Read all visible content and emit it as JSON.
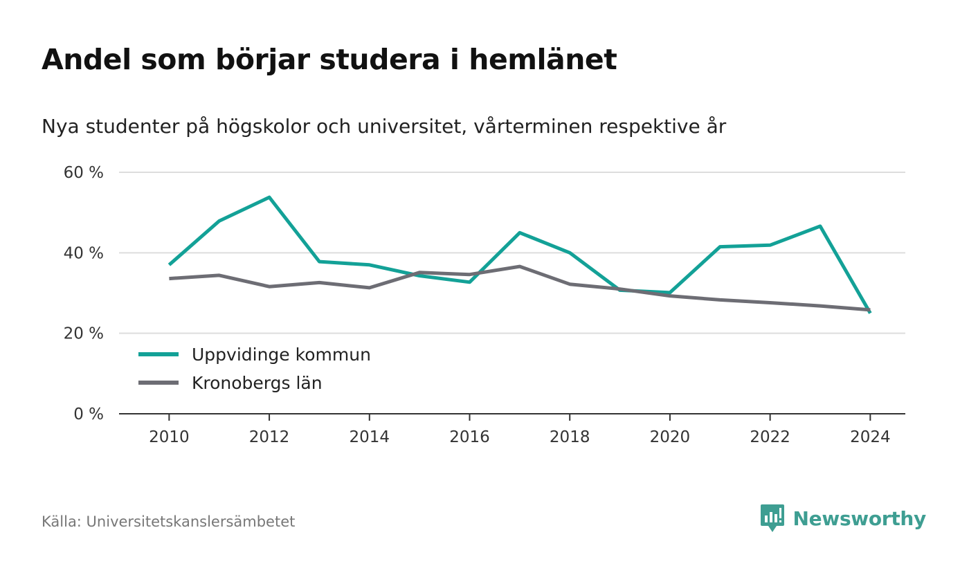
{
  "title": "Andel som börjar studera i hemlänet",
  "subtitle": "Nya studenter på högskolor och universitet, vårterminen respektive år",
  "source": "Källa: Universitetskanslersämbetet",
  "brand": {
    "name": "Newsworthy",
    "icon": "newsworthy-logo-icon",
    "color": "#3e9e92"
  },
  "colors": {
    "series_1": "#13a197",
    "series_2": "#6d6d74",
    "grid": "#dddddd",
    "axis": "#333333"
  },
  "chart_data": {
    "type": "line",
    "title": "Andel som börjar studera i hemlänet",
    "subtitle": "Nya studenter på högskolor och universitet, vårterminen respektive år",
    "xlabel": "",
    "ylabel": "",
    "x": [
      2010,
      2011,
      2012,
      2013,
      2014,
      2015,
      2016,
      2017,
      2018,
      2019,
      2020,
      2021,
      2022,
      2023,
      2024
    ],
    "xticks": [
      "2010",
      "2012",
      "2014",
      "2016",
      "2018",
      "2020",
      "2022",
      "2024"
    ],
    "xlim": [
      2009,
      2024.7
    ],
    "ylim": [
      0,
      60
    ],
    "yticks": [
      0,
      20,
      40,
      60
    ],
    "ytick_labels": [
      "0 %",
      "20 %",
      "40 %",
      "60 %"
    ],
    "grid": true,
    "legend_position": "bottom-left",
    "series": [
      {
        "name": "Uppvidinge kommun",
        "color": "#13a197",
        "values": [
          37.0,
          47.9,
          53.8,
          37.8,
          37.0,
          34.3,
          32.7,
          45.0,
          40.0,
          30.7,
          30.1,
          41.5,
          41.9,
          46.6,
          25.0
        ]
      },
      {
        "name": "Kronobergs län",
        "color": "#6d6d74",
        "values": [
          33.6,
          34.4,
          31.6,
          32.6,
          31.3,
          35.1,
          34.6,
          36.6,
          32.2,
          31.0,
          29.3,
          28.3,
          27.6,
          26.8,
          25.8
        ]
      }
    ]
  }
}
